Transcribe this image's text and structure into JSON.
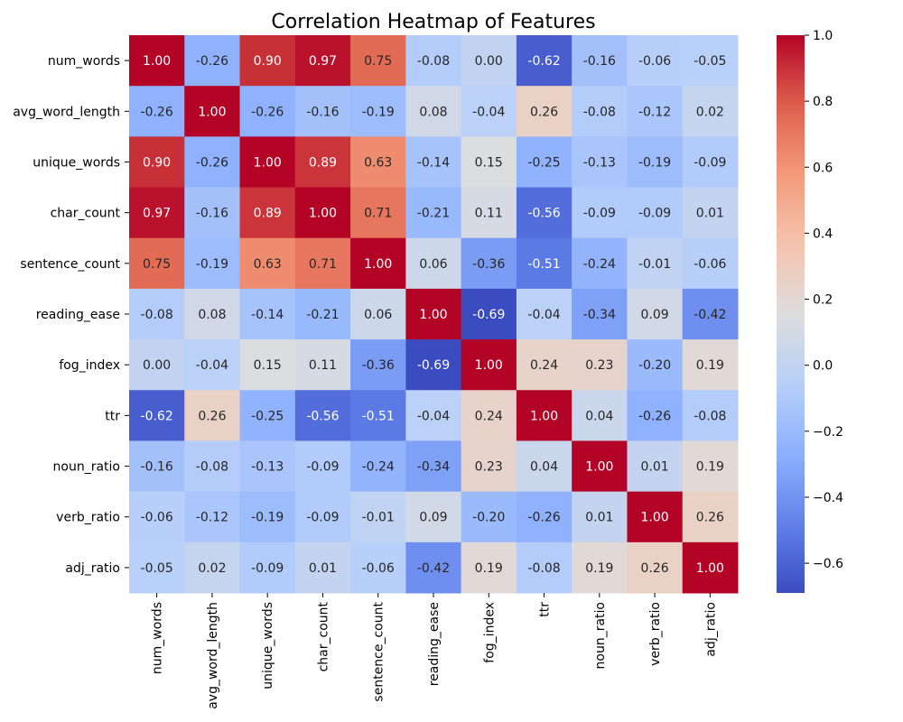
{
  "chart_data": {
    "type": "heatmap",
    "title": "Correlation Heatmap of Features",
    "xlabel": "",
    "ylabel": "",
    "colormap": "coolwarm",
    "color_range": [
      -0.69,
      1.0
    ],
    "colorbar_ticks": [
      1.0,
      0.8,
      0.6,
      0.4,
      0.2,
      0.0,
      -0.2,
      -0.4,
      -0.6
    ],
    "colorbar_tick_labels": [
      "1.0",
      "0.8",
      "0.6",
      "0.4",
      "0.2",
      "0.0",
      "−0.2",
      "−0.4",
      "−0.6"
    ],
    "annotation_format": "2 decimals",
    "features": [
      "num_words",
      "avg_word_length",
      "unique_words",
      "char_count",
      "sentence_count",
      "reading_ease",
      "fog_index",
      "ttr",
      "noun_ratio",
      "verb_ratio",
      "adj_ratio"
    ],
    "matrix": [
      [
        1.0,
        -0.26,
        0.9,
        0.97,
        0.75,
        -0.08,
        0.0,
        -0.62,
        -0.16,
        -0.06,
        -0.05
      ],
      [
        -0.26,
        1.0,
        -0.26,
        -0.16,
        -0.19,
        0.08,
        -0.04,
        0.26,
        -0.08,
        -0.12,
        0.02
      ],
      [
        0.9,
        -0.26,
        1.0,
        0.89,
        0.63,
        -0.14,
        0.15,
        -0.25,
        -0.13,
        -0.19,
        -0.09
      ],
      [
        0.97,
        -0.16,
        0.89,
        1.0,
        0.71,
        -0.21,
        0.11,
        -0.56,
        -0.09,
        -0.09,
        0.01
      ],
      [
        0.75,
        -0.19,
        0.63,
        0.71,
        1.0,
        0.06,
        -0.36,
        -0.51,
        -0.24,
        -0.01,
        -0.06
      ],
      [
        -0.08,
        0.08,
        -0.14,
        -0.21,
        0.06,
        1.0,
        -0.69,
        -0.04,
        -0.34,
        0.09,
        -0.42
      ],
      [
        0.0,
        -0.04,
        0.15,
        0.11,
        -0.36,
        -0.69,
        1.0,
        0.24,
        0.23,
        -0.2,
        0.19
      ],
      [
        -0.62,
        0.26,
        -0.25,
        -0.56,
        -0.51,
        -0.04,
        0.24,
        1.0,
        0.04,
        -0.26,
        -0.08
      ],
      [
        -0.16,
        -0.08,
        -0.13,
        -0.09,
        -0.24,
        -0.34,
        0.23,
        0.04,
        1.0,
        0.01,
        0.19
      ],
      [
        -0.06,
        -0.12,
        -0.19,
        -0.09,
        -0.01,
        0.09,
        -0.2,
        -0.26,
        0.01,
        1.0,
        0.26
      ],
      [
        -0.05,
        0.02,
        -0.09,
        0.01,
        -0.06,
        -0.42,
        0.19,
        -0.08,
        0.19,
        0.26,
        1.0
      ]
    ]
  }
}
